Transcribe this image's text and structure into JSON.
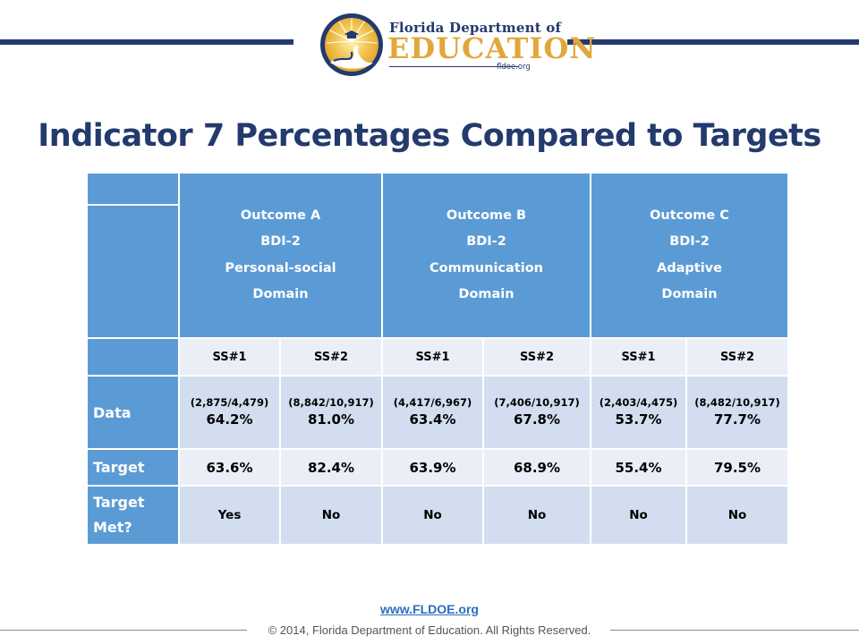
{
  "header": {
    "logo_top": "Florida Department of",
    "logo_main": "EDUCATION",
    "logo_url": "fldoe.org"
  },
  "title": "Indicator 7 Percentages Compared to Targets",
  "table": {
    "outcomes": [
      {
        "line1": "Outcome A",
        "line2": "BDI-2",
        "line3": "Personal-social",
        "line4": "Domain"
      },
      {
        "line1": "Outcome B",
        "line2": "BDI-2",
        "line3": "Communication",
        "line4": "Domain"
      },
      {
        "line1": "Outcome C",
        "line2": "BDI-2",
        "line3": "Adaptive",
        "line4": "Domain"
      }
    ],
    "ss_headers": [
      "SS#1",
      "SS#2",
      "SS#1",
      "SS#2",
      "SS#1",
      "SS#2"
    ],
    "row_labels": {
      "data": "Data",
      "target": "Target",
      "target_met_1": "Target",
      "target_met_2": "Met?"
    },
    "data": [
      {
        "fraction": "(2,875/4,479)",
        "percent": "64.2%"
      },
      {
        "fraction": "(8,842/10,917)",
        "percent": "81.0%"
      },
      {
        "fraction": "(4,417/6,967)",
        "percent": "63.4%"
      },
      {
        "fraction": "(7,406/10,917)",
        "percent": "67.8%"
      },
      {
        "fraction": "(2,403/4,475)",
        "percent": "53.7%"
      },
      {
        "fraction": "(8,482/10,917)",
        "percent": "77.7%"
      }
    ],
    "targets": [
      "63.6%",
      "82.4%",
      "63.9%",
      "68.9%",
      "55.4%",
      "79.5%"
    ],
    "target_met": [
      "Yes",
      "No",
      "No",
      "No",
      "No",
      "No"
    ]
  },
  "footer": {
    "url": "www.FLDOE.org",
    "copyright": "© 2014, Florida Department of Education. All Rights Reserved."
  },
  "colors": {
    "navy": "#233a6d",
    "gold": "#e2a73b",
    "header_blue": "#5b9bd5",
    "row_light": "#d2deef",
    "row_lighter": "#eaeff7"
  }
}
